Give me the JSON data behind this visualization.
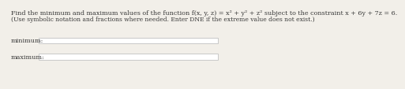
{
  "line1": "Find the minimum and maximum values of the function f(x, y, z) = x² + y² + z² subject to the constraint x + 6y + 7z = 6.",
  "line2": "(Use symbolic notation and fractions where needed. Enter DNE if the extreme value does not exist.)",
  "label_minimum": "minimum:",
  "label_maximum": "maximum:",
  "bg_color": "#f2efe9",
  "box_fill": "#ffffff",
  "box_edge": "#c8c8c8",
  "text_color": "#3a3a3a",
  "font_size": 5.8,
  "label_font_size": 5.8,
  "line2_font_size": 5.5
}
